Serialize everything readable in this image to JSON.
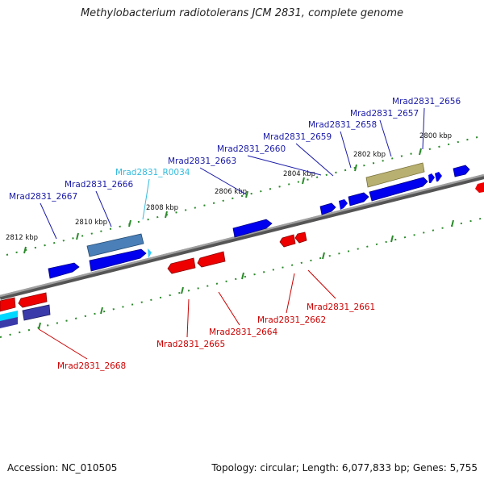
{
  "title": "Methylobacterium radiotolerans JCM 2831, complete genome",
  "footer": {
    "accession": "Accession: NC_010505",
    "summary": "Topology: circular; Length: 6,077,833 bp; Genes: 5,755"
  },
  "colors": {
    "backbone": "#808080",
    "forward_gene": "#0000ee",
    "reverse_gene": "#ee0000",
    "forward_label": "#1a1aa8",
    "reverse_label": "#cc0000",
    "rna_label": "#33bbdd",
    "tick": "#2a8a2a"
  },
  "ticks": [
    "2800 kbp",
    "2802 kbp",
    "2804 kbp",
    "2806 kbp",
    "2808 kbp",
    "2810 kbp",
    "2812 kbp"
  ],
  "forward_labels": [
    "Mrad2831_2656",
    "Mrad2831_2657",
    "Mrad2831_2658",
    "Mrad2831_2659",
    "Mrad2831_2660",
    "Mrad2831_2663",
    "Mrad2831_2666",
    "Mrad2831_2667"
  ],
  "rna_label": "Mrad2831_R0034",
  "reverse_labels": [
    "Mrad2831_2661",
    "Mrad2831_2662",
    "Mrad2831_2664",
    "Mrad2831_2665",
    "Mrad2831_2668"
  ]
}
